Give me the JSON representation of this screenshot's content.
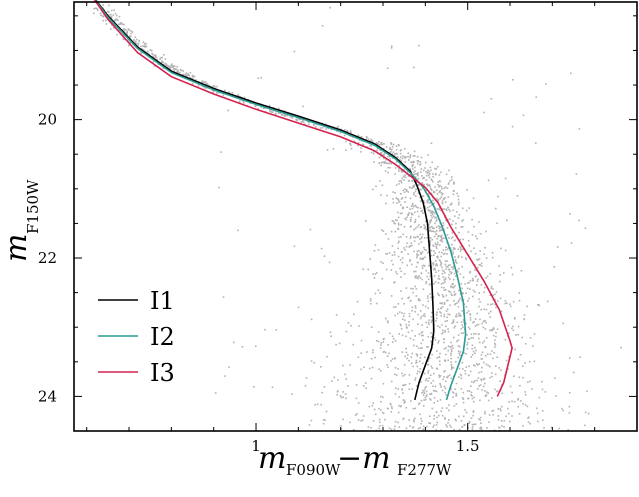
{
  "chart_data": {
    "type": "scatter",
    "xlabel": {
      "main": "m",
      "sub1": "F090W",
      "sep": "−m",
      "sub2": "F277W"
    },
    "ylabel": {
      "main": "m",
      "sub": "F150W"
    },
    "xlim": [
      0.57,
      1.9
    ],
    "ylim": [
      24.5,
      18.3
    ],
    "y_inverted": true,
    "x_ticks": [
      1,
      1.5
    ],
    "x_tick_labels": [
      "1",
      "1.5"
    ],
    "y_ticks": [
      20,
      22,
      24
    ],
    "y_tick_labels": [
      "20",
      "22",
      "24"
    ],
    "x_minor_step": 0.1,
    "y_minor_step": 0.5,
    "grid": false,
    "legend_position": "lower-left",
    "point_color": "#b3b3b3",
    "ridge": [
      [
        0.63,
        18.35
      ],
      [
        0.7,
        18.8
      ],
      [
        0.78,
        19.2
      ],
      [
        0.88,
        19.5
      ],
      [
        1.0,
        19.78
      ],
      [
        1.1,
        19.98
      ],
      [
        1.2,
        20.15
      ],
      [
        1.28,
        20.35
      ],
      [
        1.33,
        20.55
      ],
      [
        1.36,
        20.7
      ],
      [
        1.39,
        20.95
      ],
      [
        1.41,
        21.4
      ],
      [
        1.425,
        22.0
      ],
      [
        1.445,
        22.6
      ],
      [
        1.45,
        23.0
      ],
      [
        1.44,
        23.5
      ],
      [
        1.43,
        24.0
      ],
      [
        1.42,
        24.4
      ]
    ],
    "series": [
      {
        "name": "I1",
        "color": "#000000",
        "x": [
          0.6,
          0.65,
          0.72,
          0.8,
          0.9,
          1.0,
          1.1,
          1.2,
          1.28,
          1.33,
          1.365,
          1.38,
          1.395,
          1.405,
          1.41,
          1.415,
          1.418,
          1.42,
          1.415,
          1.4,
          1.385,
          1.375
        ],
        "y": [
          18.1,
          18.5,
          18.95,
          19.3,
          19.55,
          19.76,
          19.95,
          20.15,
          20.35,
          20.55,
          20.75,
          20.95,
          21.2,
          21.5,
          21.9,
          22.3,
          22.7,
          23.05,
          23.3,
          23.55,
          23.8,
          24.05
        ]
      },
      {
        "name": "I2",
        "color": "#2a9c93",
        "x": [
          0.6,
          0.65,
          0.72,
          0.8,
          0.9,
          1.0,
          1.1,
          1.2,
          1.28,
          1.33,
          1.365,
          1.395,
          1.42,
          1.44,
          1.46,
          1.475,
          1.49,
          1.495,
          1.49,
          1.475,
          1.46,
          1.45
        ],
        "y": [
          18.1,
          18.52,
          18.97,
          19.32,
          19.57,
          19.78,
          19.97,
          20.17,
          20.37,
          20.57,
          20.77,
          20.98,
          21.25,
          21.55,
          21.9,
          22.25,
          22.65,
          23.1,
          23.35,
          23.6,
          23.85,
          24.05
        ]
      },
      {
        "name": "I3",
        "color": "#d6214f",
        "x": [
          0.6,
          0.65,
          0.72,
          0.8,
          0.9,
          1.0,
          1.1,
          1.2,
          1.28,
          1.33,
          1.37,
          1.4,
          1.43,
          1.46,
          1.5,
          1.54,
          1.575,
          1.6,
          1.605,
          1.595,
          1.585,
          1.57
        ],
        "y": [
          18.1,
          18.55,
          19.03,
          19.38,
          19.63,
          19.85,
          20.05,
          20.25,
          20.45,
          20.65,
          20.84,
          20.98,
          21.2,
          21.55,
          21.95,
          22.35,
          22.75,
          23.2,
          23.3,
          23.55,
          23.8,
          24.0
        ]
      }
    ]
  }
}
